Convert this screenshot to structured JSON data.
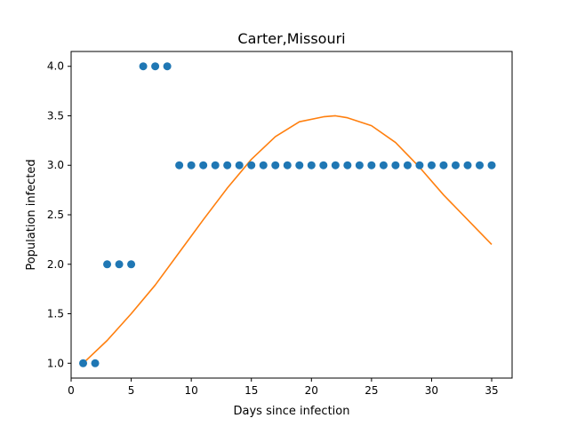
{
  "chart_data": {
    "type": "scatter",
    "title": "Carter,Missouri",
    "xlabel": "Days since infection",
    "ylabel": "Population infected",
    "xlim": [
      0,
      36.7
    ],
    "ylim": [
      0.85,
      4.15
    ],
    "x_ticks": [
      0,
      5,
      10,
      15,
      20,
      25,
      30,
      35
    ],
    "y_ticks": [
      1.0,
      1.5,
      2.0,
      2.5,
      3.0,
      3.5,
      4.0
    ],
    "x_tick_labels": [
      "0",
      "5",
      "10",
      "15",
      "20",
      "25",
      "30",
      "35"
    ],
    "y_tick_labels": [
      "1.0",
      "1.5",
      "2.0",
      "2.5",
      "3.0",
      "3.5",
      "4.0"
    ],
    "grid": false,
    "series": [
      {
        "kind": "scatter",
        "color": "#1f77b4",
        "x": [
          1,
          2,
          3,
          4,
          5,
          6,
          7,
          8,
          9,
          10,
          11,
          12,
          13,
          14,
          15,
          16,
          17,
          18,
          19,
          20,
          21,
          22,
          23,
          24,
          25,
          26,
          27,
          28,
          29,
          30,
          31,
          32,
          33,
          34,
          35
        ],
        "y": [
          1,
          1,
          2,
          2,
          2,
          4,
          4,
          4,
          3,
          3,
          3,
          3,
          3,
          3,
          3,
          3,
          3,
          3,
          3,
          3,
          3,
          3,
          3,
          3,
          3,
          3,
          3,
          3,
          3,
          3,
          3,
          3,
          3,
          3,
          3
        ]
      },
      {
        "kind": "line",
        "color": "#ff7f0e",
        "x": [
          1,
          3,
          5,
          7,
          9,
          11,
          13,
          15,
          17,
          19,
          21,
          22,
          23,
          25,
          27,
          29,
          31,
          33,
          35
        ],
        "y": [
          1.0,
          1.23,
          1.5,
          1.79,
          2.12,
          2.45,
          2.77,
          3.06,
          3.29,
          3.44,
          3.49,
          3.5,
          3.48,
          3.4,
          3.23,
          2.98,
          2.7,
          2.45,
          2.2
        ]
      }
    ]
  }
}
